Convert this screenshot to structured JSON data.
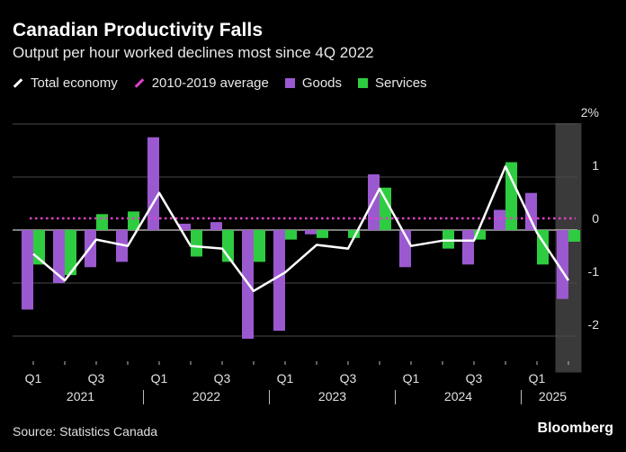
{
  "title": "Canadian Productivity Falls",
  "subtitle": "Output per hour worked declines most since 4Q 2022",
  "legend": [
    {
      "label": "Total economy",
      "color": "#ffffff",
      "shape": "line"
    },
    {
      "label": "2010-2019 average",
      "color": "#e040c8",
      "shape": "dashed-line"
    },
    {
      "label": "Goods",
      "color": "#9b59d0",
      "shape": "square"
    },
    {
      "label": "Services",
      "color": "#2ecc40",
      "shape": "square"
    }
  ],
  "source": "Source: Statistics Canada",
  "brand": "Bloomberg",
  "chart_data": {
    "type": "bar",
    "quarters": [
      "2021Q1",
      "2021Q2",
      "2021Q3",
      "2021Q4",
      "2022Q1",
      "2022Q2",
      "2022Q3",
      "2022Q4",
      "2023Q1",
      "2023Q2",
      "2023Q3",
      "2023Q4",
      "2024Q1",
      "2024Q2",
      "2024Q3",
      "2024Q4",
      "2025Q1",
      "2025Q2"
    ],
    "series": [
      {
        "name": "Goods",
        "color": "#9b59d0",
        "values": [
          -1.5,
          -1.0,
          -0.7,
          -0.6,
          1.75,
          0.12,
          0.15,
          -2.05,
          -1.9,
          -0.08,
          0.0,
          1.05,
          -0.7,
          0.0,
          -0.65,
          0.38,
          0.7,
          -1.3
        ]
      },
      {
        "name": "Services",
        "color": "#2ecc40",
        "values": [
          -0.65,
          -0.85,
          0.3,
          0.35,
          0.0,
          -0.5,
          -0.6,
          -0.6,
          -0.18,
          -0.15,
          -0.15,
          0.8,
          0.0,
          -0.35,
          -0.18,
          1.28,
          -0.65,
          -0.22
        ]
      },
      {
        "name": "Total economy",
        "color": "#ffffff",
        "values": [
          -0.45,
          -0.95,
          -0.18,
          -0.3,
          0.7,
          -0.3,
          -0.35,
          -1.15,
          -0.8,
          -0.28,
          -0.35,
          0.78,
          -0.3,
          -0.2,
          -0.2,
          1.2,
          -0.05,
          -0.95
        ]
      }
    ],
    "average_2010_2019": 0.22,
    "y_ticks": [
      {
        "value": 2,
        "label": "2%"
      },
      {
        "value": 1,
        "label": "1"
      },
      {
        "value": 0,
        "label": "0"
      },
      {
        "value": -1,
        "label": "-1"
      },
      {
        "value": -2,
        "label": "-2"
      }
    ],
    "x_quarter_labels": [
      {
        "index": 0,
        "label": "Q1"
      },
      {
        "index": 2,
        "label": "Q3"
      },
      {
        "index": 4,
        "label": "Q1"
      },
      {
        "index": 6,
        "label": "Q3"
      },
      {
        "index": 8,
        "label": "Q1"
      },
      {
        "index": 10,
        "label": "Q3"
      },
      {
        "index": 12,
        "label": "Q1"
      },
      {
        "index": 14,
        "label": "Q3"
      },
      {
        "index": 16,
        "label": "Q1"
      }
    ],
    "years": [
      {
        "label": "2021",
        "start": 0,
        "end": 3
      },
      {
        "label": "2022",
        "start": 4,
        "end": 7
      },
      {
        "label": "2023",
        "start": 8,
        "end": 11
      },
      {
        "label": "2024",
        "start": 12,
        "end": 15
      },
      {
        "label": "2025",
        "start": 16,
        "end": 17
      }
    ],
    "highlight_index": 17,
    "ylim": [
      -2.5,
      2.0
    ],
    "grid": true,
    "legend_position": "top-left",
    "y_axis_position": "right"
  }
}
